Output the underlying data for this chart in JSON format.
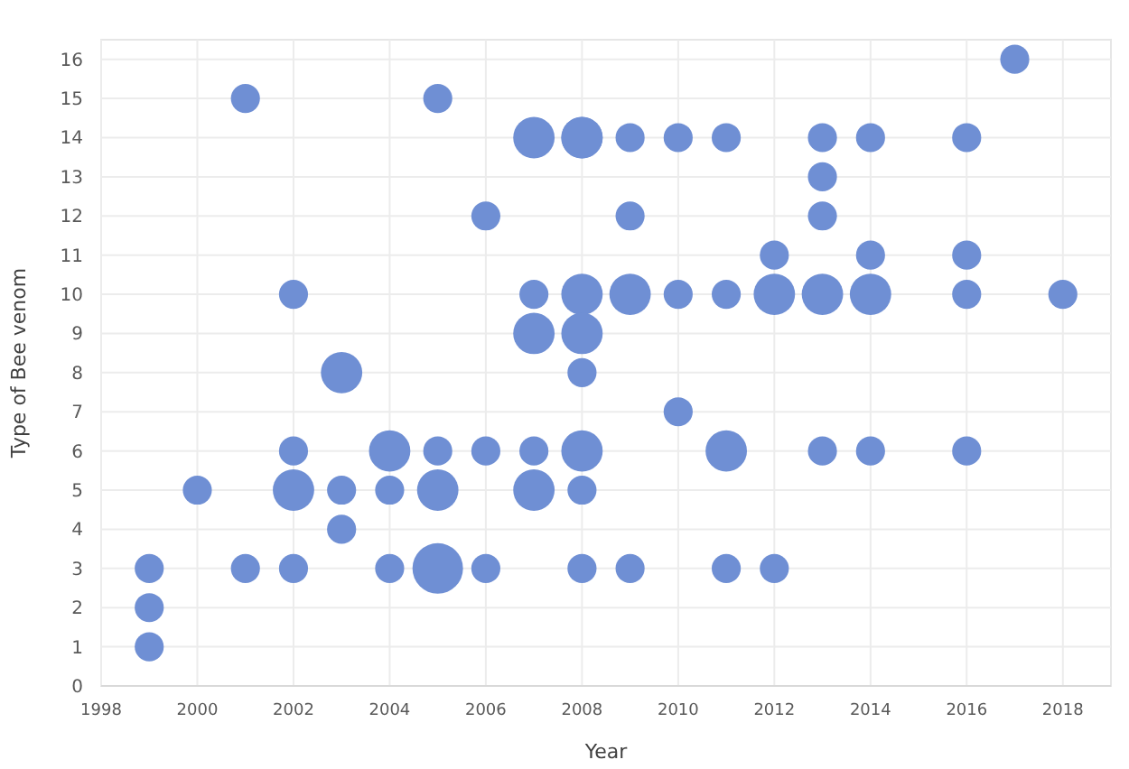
{
  "chart_data": {
    "type": "bubble",
    "xlabel": "Year",
    "ylabel": "Type of Bee venom",
    "grid": true,
    "xlim": [
      1998,
      2019
    ],
    "xticks": [
      1998,
      2000,
      2002,
      2004,
      2006,
      2008,
      2010,
      2012,
      2014,
      2016,
      2018
    ],
    "ylim": [
      0,
      16.5
    ],
    "yticks": [
      0,
      1,
      2,
      3,
      4,
      5,
      6,
      7,
      8,
      9,
      10,
      11,
      12,
      13,
      14,
      15,
      16
    ],
    "series": [
      {
        "color": "#6f8fd4",
        "x": [
          1999,
          1999,
          1999,
          2000,
          2001,
          2001,
          2002,
          2002,
          2002,
          2002,
          2003,
          2003,
          2003,
          2004,
          2004,
          2004,
          2005,
          2005,
          2005,
          2005,
          2006,
          2006,
          2006,
          2007,
          2007,
          2007,
          2007,
          2007,
          2008,
          2008,
          2008,
          2008,
          2008,
          2008,
          2008,
          2008,
          2009,
          2009,
          2009,
          2009,
          2010,
          2010,
          2010,
          2011,
          2011,
          2011,
          2011,
          2012,
          2012,
          2012,
          2013,
          2013,
          2013,
          2013,
          2013,
          2014,
          2014,
          2014,
          2014,
          2016,
          2016,
          2016,
          2016,
          2017,
          2018
        ],
        "values": [
          1,
          2,
          3,
          5,
          15,
          3,
          10,
          6,
          5,
          3,
          8,
          5,
          4,
          6,
          5,
          3,
          15,
          6,
          5,
          3,
          12,
          6,
          3,
          14,
          10,
          9,
          6,
          5,
          14,
          10,
          9,
          8,
          6,
          5,
          3,
          14,
          14,
          12,
          10,
          3,
          14,
          10,
          7,
          14,
          10,
          6,
          3,
          11,
          10,
          3,
          14,
          13,
          12,
          10,
          6,
          14,
          11,
          10,
          6,
          14,
          11,
          10,
          6,
          16,
          10
        ],
        "sizes": [
          0.33,
          0.33,
          0.33,
          0.33,
          0.33,
          0.33,
          0.33,
          0.33,
          0.67,
          0.33,
          0.67,
          0.33,
          0.33,
          0.67,
          0.33,
          0.33,
          0.33,
          0.33,
          0.67,
          1,
          0.33,
          0.33,
          0.33,
          0.67,
          0.33,
          0.67,
          0.33,
          0.67,
          0.67,
          0.67,
          0.67,
          0.33,
          0.67,
          0.33,
          0.33,
          0.67,
          0.33,
          0.33,
          0.67,
          0.33,
          0.33,
          0.33,
          0.33,
          0.33,
          0.33,
          0.67,
          0.33,
          0.33,
          0.67,
          0.33,
          0.33,
          0.33,
          0.33,
          0.67,
          0.33,
          0.33,
          0.33,
          0.67,
          0.33,
          0.33,
          0.33,
          0.33,
          0.33,
          0.33,
          0.33
        ]
      }
    ]
  }
}
